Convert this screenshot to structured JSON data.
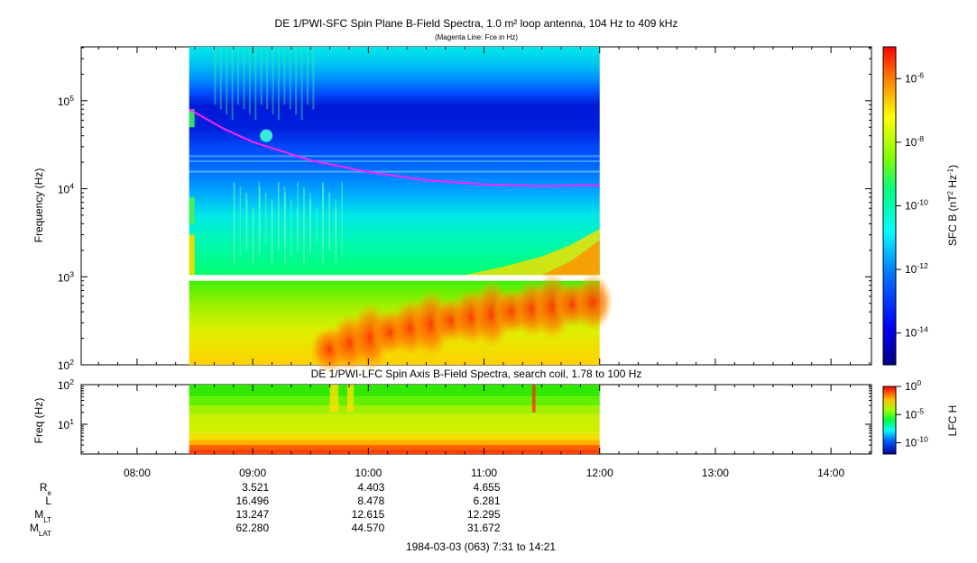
{
  "chart_data": [
    {
      "type": "heatmap",
      "title": "DE 1/PWI-SFC  Spin Plane B-Field Spectra, 1.0 m² loop antenna, 104 Hz to 409 kHz",
      "subtitle": "(Magenta Line: Fce in Hz)",
      "ylabel": "Frequency (Hz)",
      "y_scale": "log",
      "ylim": [
        100,
        409000
      ],
      "y_ticks": [
        "10^2",
        "10^3",
        "10^4",
        "10^5"
      ],
      "xlim": [
        "07:31",
        "14:21"
      ],
      "data_time_range": [
        "08:27",
        "12:00"
      ],
      "colorbar": {
        "label": "SFC B (nT^2 Hz^-1)",
        "scale": "log",
        "range": [
          1e-15,
          1e-05
        ],
        "ticks": [
          "10^-14",
          "10^-12",
          "10^-10",
          "10^-8",
          "10^-6"
        ]
      },
      "fce_line": {
        "color": "#ff22ff",
        "times": [
          "08:27",
          "08:45",
          "09:00",
          "09:30",
          "10:00",
          "10:30",
          "11:00",
          "11:30",
          "12:00"
        ],
        "values_hz": [
          80000,
          48000,
          34000,
          21000,
          15500,
          12500,
          11200,
          10700,
          11000
        ]
      }
    },
    {
      "type": "heatmap",
      "title": "DE 1/PWI-LFC  Spin Axis B-Field Spectra, search coil, 1.78 to 100 Hz",
      "ylabel": "Freq (Hz)",
      "y_scale": "log",
      "ylim": [
        1.78,
        100
      ],
      "y_ticks": [
        "10^1",
        "10^2"
      ],
      "xlim": [
        "07:31",
        "14:21"
      ],
      "data_time_range": [
        "08:27",
        "12:00"
      ],
      "colorbar": {
        "label": "LFC H",
        "scale": "log",
        "range": [
          1e-12,
          1
        ],
        "ticks": [
          "10^0",
          "10^-5",
          "10^-10"
        ]
      }
    }
  ],
  "time_axis": {
    "ticks": [
      "08:00",
      "09:00",
      "10:00",
      "11:00",
      "12:00",
      "13:00",
      "14:00"
    ]
  },
  "ephemeris": {
    "rows": [
      {
        "label": "R",
        "sub": "e",
        "values": [
          "3.521",
          "4.403",
          "4.655"
        ]
      },
      {
        "label": "L",
        "sub": "",
        "values": [
          "16.496",
          "8.478",
          "6.281"
        ]
      },
      {
        "label": "M",
        "sub": "LT",
        "values": [
          "13.247",
          "12.615",
          "12.295"
        ]
      },
      {
        "label": "M",
        "sub": "LAT",
        "values": [
          "62.280",
          "44.570",
          "31.672"
        ]
      }
    ]
  },
  "footer": "1984-03-03 (063) 7:31 to 14:21"
}
